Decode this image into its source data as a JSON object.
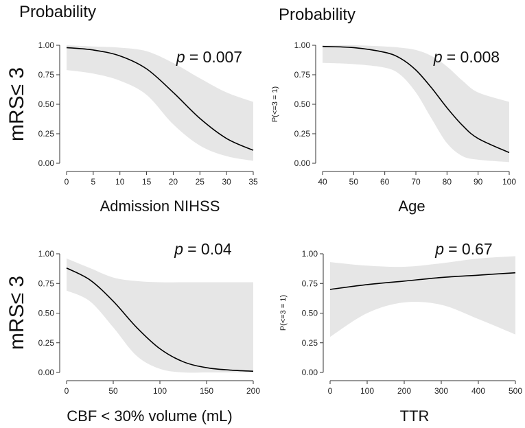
{
  "page_headings": [
    "Probability",
    "Probability"
  ],
  "chart_data": [
    {
      "type": "line",
      "id": "nihss",
      "xlabel": "Admission NIHSS",
      "ylabel": "mRS≤ 3",
      "p_prefix": "p",
      "p_value": "= 0.007",
      "xlim": [
        0,
        35
      ],
      "ylim": [
        0,
        1
      ],
      "xticks": [
        "0",
        "5",
        "10",
        "15",
        "20",
        "25",
        "30",
        "35"
      ],
      "xtick_values": [
        0,
        5,
        10,
        15,
        20,
        25,
        30,
        35
      ],
      "yticks": [
        "0.00",
        "0.25",
        "0.50",
        "0.75",
        "1.00"
      ],
      "ytick_values": [
        0,
        0.25,
        0.5,
        0.75,
        1
      ],
      "x": [
        0,
        5,
        10,
        15,
        20,
        25,
        30,
        35
      ],
      "y": [
        0.98,
        0.96,
        0.91,
        0.8,
        0.6,
        0.38,
        0.21,
        0.11
      ],
      "lower": [
        0.79,
        0.76,
        0.7,
        0.58,
        0.33,
        0.15,
        0.06,
        0.02
      ],
      "upper": [
        1.0,
        0.99,
        0.98,
        0.95,
        0.85,
        0.72,
        0.6,
        0.52
      ]
    },
    {
      "type": "line",
      "id": "age",
      "xlabel": "Age",
      "ylabel": "P(<=3 = 1)",
      "p_prefix": "p",
      "p_value": "= 0.008",
      "xlim": [
        40,
        100
      ],
      "ylim": [
        0,
        1
      ],
      "xticks": [
        "40",
        "50",
        "60",
        "70",
        "80",
        "90",
        "100"
      ],
      "xtick_values": [
        40,
        50,
        60,
        70,
        80,
        90,
        100
      ],
      "yticks": [
        "0.00",
        "0.25",
        "0.50",
        "0.75",
        "1.00"
      ],
      "ytick_values": [
        0,
        0.25,
        0.5,
        0.75,
        1
      ],
      "x": [
        40,
        50,
        60,
        65,
        70,
        75,
        80,
        85,
        90,
        100
      ],
      "y": [
        0.99,
        0.98,
        0.94,
        0.89,
        0.79,
        0.64,
        0.47,
        0.32,
        0.21,
        0.09
      ],
      "lower": [
        0.85,
        0.84,
        0.81,
        0.75,
        0.6,
        0.38,
        0.17,
        0.06,
        0.03,
        0.01
      ],
      "upper": [
        1.0,
        1.0,
        0.99,
        0.98,
        0.96,
        0.91,
        0.82,
        0.7,
        0.6,
        0.52
      ]
    },
    {
      "type": "line",
      "id": "cbf",
      "xlabel": "CBF < 30% volume (mL)",
      "ylabel": "mRS≤ 3",
      "p_prefix": "p",
      "p_value": "= 0.04",
      "xlim": [
        0,
        200
      ],
      "ylim": [
        0,
        1
      ],
      "xticks": [
        "0",
        "50",
        "100",
        "150",
        "200"
      ],
      "xtick_values": [
        0,
        50,
        100,
        150,
        200
      ],
      "yticks": [
        "0.00",
        "0.25",
        "0.50",
        "0.75",
        "1.00"
      ],
      "ytick_values": [
        0,
        0.25,
        0.5,
        0.75,
        1
      ],
      "x": [
        0,
        25,
        50,
        75,
        100,
        125,
        150,
        175,
        200
      ],
      "y": [
        0.88,
        0.78,
        0.6,
        0.38,
        0.2,
        0.09,
        0.04,
        0.02,
        0.01
      ],
      "lower": [
        0.69,
        0.6,
        0.38,
        0.14,
        0.03,
        0.0,
        0.0,
        0.0,
        0.0
      ],
      "upper": [
        0.96,
        0.88,
        0.8,
        0.77,
        0.76,
        0.76,
        0.76,
        0.76,
        0.76
      ]
    },
    {
      "type": "line",
      "id": "ttr",
      "xlabel": "TTR",
      "ylabel": "P(<=3 = 1)",
      "p_prefix": "p",
      "p_value": "= 0.67",
      "xlim": [
        0,
        500
      ],
      "ylim": [
        0,
        1
      ],
      "xticks": [
        "0",
        "100",
        "200",
        "300",
        "400",
        "500"
      ],
      "xtick_values": [
        0,
        100,
        200,
        300,
        400,
        500
      ],
      "yticks": [
        "0.00",
        "0.25",
        "0.50",
        "0.75",
        "1.00"
      ],
      "ytick_values": [
        0,
        0.25,
        0.5,
        0.75,
        1
      ],
      "x": [
        0,
        100,
        200,
        300,
        400,
        500
      ],
      "y": [
        0.7,
        0.74,
        0.77,
        0.8,
        0.82,
        0.84
      ],
      "lower": [
        0.3,
        0.5,
        0.59,
        0.57,
        0.45,
        0.32
      ],
      "upper": [
        0.93,
        0.9,
        0.89,
        0.92,
        0.96,
        0.98
      ]
    }
  ]
}
